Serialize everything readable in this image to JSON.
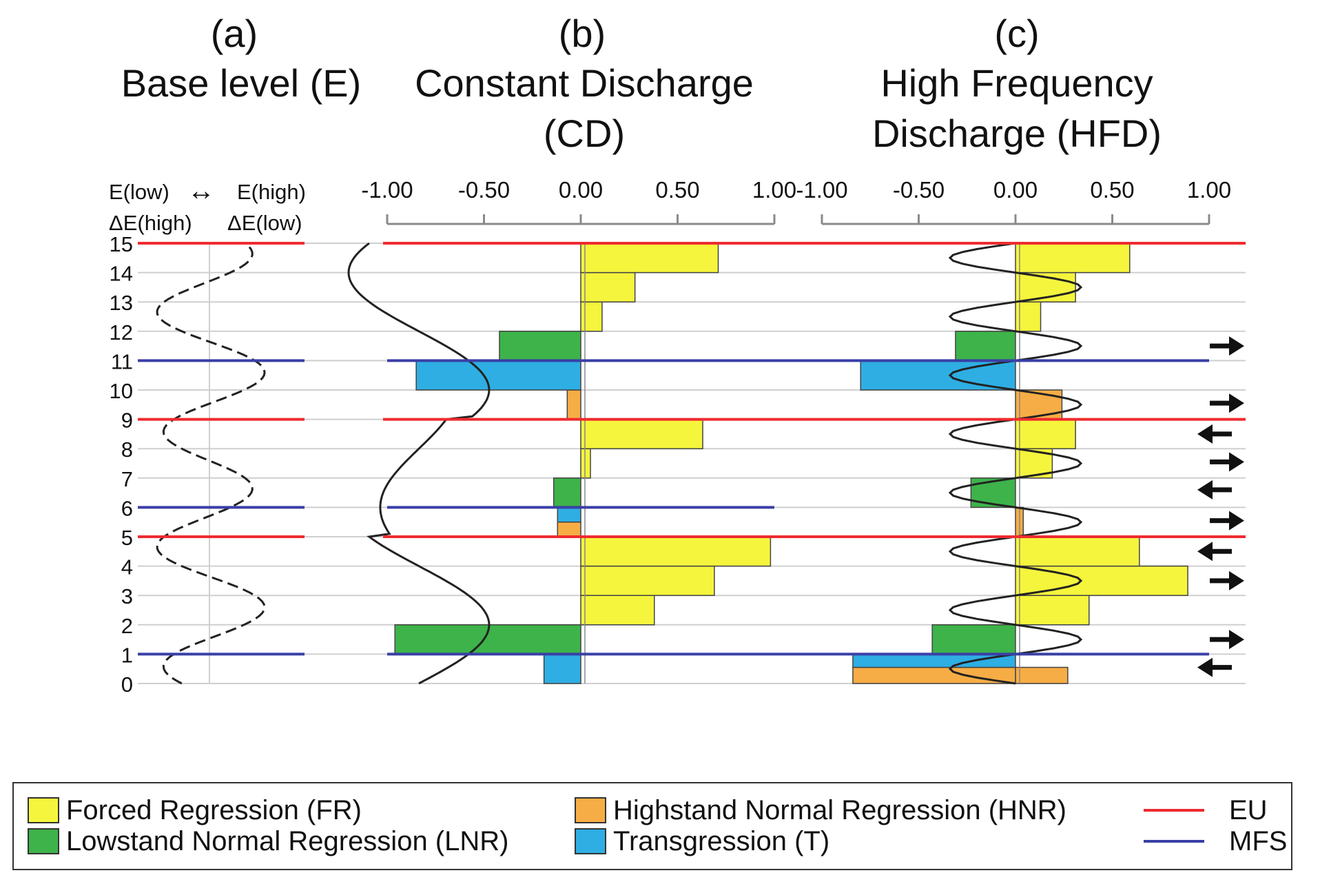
{
  "panels": [
    {
      "letter": "(a)",
      "title_lines": [
        "Base level (E)"
      ]
    },
    {
      "letter": "(b)",
      "title_lines": [
        "Constant Discharge",
        "(CD)"
      ]
    },
    {
      "letter": "(c)",
      "title_lines": [
        "High Frequency",
        "Discharge (HFD)"
      ]
    }
  ],
  "base_level_labels": {
    "e_low": "E(low)",
    "arrow": "↔",
    "e_high": "E(high)",
    "de_high": "ΔE(high)",
    "de_low": "ΔE(low)"
  },
  "colors": {
    "FR": "#f5f53d",
    "LNR": "#3db34a",
    "HNR": "#f7ad45",
    "T": "#2eaee3",
    "EU": "#ee2b2f",
    "MFS": "#3a3fa6"
  },
  "legend": {
    "items": [
      {
        "key": "FR",
        "label": "Forced Regression (FR)"
      },
      {
        "key": "LNR",
        "label": "Lowstand Normal Regression (LNR)"
      },
      {
        "key": "HNR",
        "label": "Highstand Normal Regression (HNR)"
      },
      {
        "key": "T",
        "label": "Transgression (T)"
      }
    ],
    "lines": [
      {
        "key": "EU",
        "label": "EU"
      },
      {
        "key": "MFS",
        "label": "MFS"
      }
    ]
  },
  "chart_data": {
    "type": "bar",
    "orientation": "horizontal",
    "y_ticks": [
      "0",
      "1",
      "2",
      "3",
      "4",
      "5",
      "6",
      "7",
      "8",
      "9",
      "10",
      "11",
      "12",
      "13",
      "14",
      "15"
    ],
    "x_ticks": [
      "-1.00",
      "-0.50",
      "0.00",
      "0.50",
      "1.00"
    ],
    "xlim": [
      -1,
      1
    ],
    "ylim": [
      0,
      15
    ],
    "eu_levels": [
      5,
      9,
      15
    ],
    "mfs_levels": [
      1,
      6,
      11
    ],
    "panels": {
      "CD": {
        "bars": [
          {
            "y0": 0,
            "y1": 1,
            "value": -0.19,
            "class": "T"
          },
          {
            "y0": 1,
            "y1": 2,
            "value": -0.96,
            "class": "LNR"
          },
          {
            "y0": 2,
            "y1": 3,
            "value": 0.38,
            "class": "FR"
          },
          {
            "y0": 3,
            "y1": 4,
            "value": 0.69,
            "class": "FR"
          },
          {
            "y0": 4,
            "y1": 5,
            "value": 0.98,
            "class": "FR"
          },
          {
            "y0": 5,
            "y1": 5.5,
            "value": -0.12,
            "class": "HNR"
          },
          {
            "y0": 5.5,
            "y1": 6,
            "value": -0.12,
            "class": "T"
          },
          {
            "y0": 6,
            "y1": 7,
            "value": -0.14,
            "class": "LNR"
          },
          {
            "y0": 7,
            "y1": 8,
            "value": 0.05,
            "class": "FR"
          },
          {
            "y0": 8,
            "y1": 9,
            "value": 0.63,
            "class": "FR"
          },
          {
            "y0": 9,
            "y1": 10,
            "value": -0.07,
            "class": "HNR"
          },
          {
            "y0": 10,
            "y1": 11,
            "value": -0.85,
            "class": "T"
          },
          {
            "y0": 11,
            "y1": 12,
            "value": -0.42,
            "class": "LNR"
          },
          {
            "y0": 12,
            "y1": 13,
            "value": 0.11,
            "class": "FR"
          },
          {
            "y0": 13,
            "y1": 14,
            "value": 0.28,
            "class": "FR"
          },
          {
            "y0": 14,
            "y1": 15,
            "value": 0.71,
            "class": "FR"
          }
        ]
      },
      "HFD": {
        "bars": [
          {
            "y0": 0,
            "y1": 0.55,
            "value": -0.84,
            "class": "HNR"
          },
          {
            "y0": 0,
            "y1": 0.55,
            "value": 0.27,
            "class": "HNR"
          },
          {
            "y0": 0.55,
            "y1": 1,
            "value": -0.84,
            "class": "T"
          },
          {
            "y0": 1,
            "y1": 2,
            "value": -0.43,
            "class": "LNR"
          },
          {
            "y0": 2,
            "y1": 3,
            "value": 0.38,
            "class": "FR"
          },
          {
            "y0": 3,
            "y1": 4,
            "value": 0.89,
            "class": "FR"
          },
          {
            "y0": 4,
            "y1": 5,
            "value": 0.64,
            "class": "FR"
          },
          {
            "y0": 5,
            "y1": 6,
            "value": 0.04,
            "class": "HNR"
          },
          {
            "y0": 6,
            "y1": 7,
            "value": -0.23,
            "class": "LNR"
          },
          {
            "y0": 7,
            "y1": 8,
            "value": 0.19,
            "class": "FR"
          },
          {
            "y0": 8,
            "y1": 9,
            "value": 0.31,
            "class": "FR"
          },
          {
            "y0": 9,
            "y1": 10,
            "value": 0.24,
            "class": "HNR"
          },
          {
            "y0": 10,
            "y1": 11,
            "value": -0.8,
            "class": "T"
          },
          {
            "y0": 11,
            "y1": 12,
            "value": -0.31,
            "class": "LNR"
          },
          {
            "y0": 12,
            "y1": 13,
            "value": 0.13,
            "class": "FR"
          },
          {
            "y0": 13,
            "y1": 14,
            "value": 0.31,
            "class": "FR"
          },
          {
            "y0": 14,
            "y1": 15,
            "value": 0.59,
            "class": "FR"
          }
        ],
        "arrows": [
          {
            "y": 0.55,
            "direction": "left"
          },
          {
            "y": 1.5,
            "direction": "right"
          },
          {
            "y": 3.5,
            "direction": "right"
          },
          {
            "y": 4.5,
            "direction": "left"
          },
          {
            "y": 5.55,
            "direction": "right"
          },
          {
            "y": 6.6,
            "direction": "left"
          },
          {
            "y": 7.55,
            "direction": "right"
          },
          {
            "y": 8.5,
            "direction": "left"
          },
          {
            "y": 9.55,
            "direction": "right"
          },
          {
            "y": 11.5,
            "direction": "right"
          }
        ]
      }
    }
  }
}
